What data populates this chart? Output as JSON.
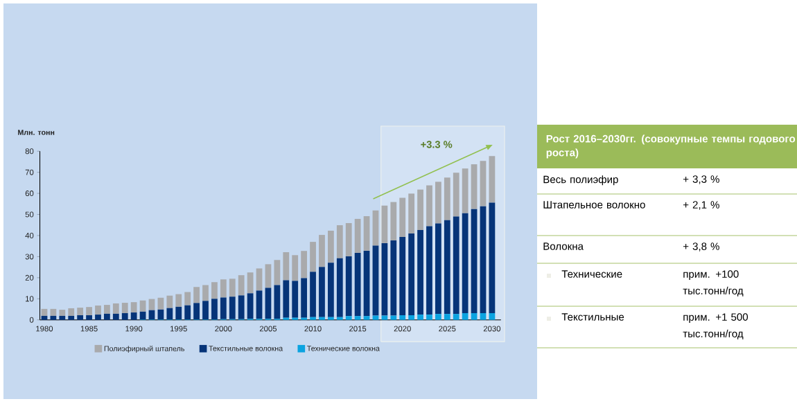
{
  "chart_data": [
    {
      "type": "bar",
      "stacked": true,
      "ylabel": "Млн. тонн",
      "legend": "bottom",
      "x": [
        1980,
        1981,
        1982,
        1983,
        1984,
        1985,
        1986,
        1987,
        1988,
        1989,
        1990,
        1991,
        1992,
        1993,
        1994,
        1995,
        1996,
        1997,
        1998,
        1999,
        2000,
        2001,
        2002,
        2003,
        2004,
        2005,
        2006,
        2007,
        2008,
        2009,
        2010,
        2011,
        2012,
        2013,
        2014,
        2015,
        2016,
        2017,
        2018,
        2019,
        2020,
        2021,
        2022,
        2023,
        2024,
        2025,
        2026,
        2027,
        2028,
        2029,
        2030
      ],
      "series": [
        {
          "name": "Технические волокна",
          "color": "#0ba3e0",
          "values": [
            null,
            null,
            null,
            null,
            null,
            null,
            null,
            null,
            null,
            null,
            null,
            0.2,
            0.2,
            0.2,
            0.2,
            0.2,
            0.2,
            0.2,
            0.2,
            0.2,
            0.3,
            0.3,
            0.3,
            0.5,
            0.5,
            0.5,
            0.5,
            1.0,
            1.0,
            1.0,
            1.3,
            1.3,
            1.3,
            1.3,
            1.8,
            1.8,
            1.8,
            2.0,
            2.0,
            2.0,
            2.2,
            2.2,
            2.5,
            2.5,
            2.8,
            2.8,
            2.8,
            3.2,
            3.2,
            3.2,
            3.2
          ]
        },
        {
          "name": "Текстильные волокна",
          "color": "#063478",
          "values": [
            1.9,
            1.9,
            1.9,
            1.9,
            2.2,
            2.2,
            2.5,
            2.9,
            2.9,
            3.2,
            3.5,
            3.7,
            4.4,
            4.7,
            5.4,
            6.0,
            6.7,
            7.8,
            8.8,
            9.8,
            10.3,
            10.7,
            11.3,
            12.1,
            13.4,
            14.7,
            16.0,
            17.8,
            17.5,
            18.8,
            21.5,
            23.8,
            25.8,
            27.9,
            28.3,
            30.0,
            31.0,
            33.2,
            34.4,
            35.7,
            37.1,
            38.8,
            40.1,
            41.9,
            42.9,
            44.5,
            46.2,
            47.4,
            49.4,
            50.7,
            52.4
          ]
        },
        {
          "name": "Полиэфирный штапель",
          "color": "#a9aaac",
          "values": [
            3.3,
            3.3,
            2.9,
            3.6,
            3.6,
            3.9,
            4.3,
            4.2,
            4.9,
            4.9,
            4.9,
            5.3,
            5.3,
            5.6,
            5.9,
            6.0,
            6.3,
            7.6,
            7.5,
            7.9,
            8.6,
            8.5,
            9.6,
            9.9,
            10.5,
            11.2,
            11.9,
            13.3,
            12.2,
            12.9,
            14.2,
            15.2,
            15.2,
            15.7,
            15.8,
            16.1,
            16.4,
            16.7,
            17.8,
            18.2,
            18.6,
            18.9,
            19.2,
            19.4,
            19.8,
            20.2,
            20.8,
            21.2,
            21.2,
            21.5,
            22.1
          ]
        }
      ],
      "xlim": [
        1979.5,
        2031
      ],
      "ylim": [
        0,
        80
      ],
      "xticks": [
        1980,
        1985,
        1990,
        1995,
        2000,
        2005,
        2010,
        2015,
        2020,
        2025,
        2030
      ],
      "yticks": [
        0,
        10,
        20,
        30,
        40,
        50,
        60,
        70,
        80
      ],
      "bands": [
        {
          "axis": "x",
          "from": 2017.6,
          "to": 2031.4,
          "color": "#eef2ee"
        }
      ],
      "annotations": [
        "+3.3 %"
      ]
    },
    {
      "type": "other",
      "title": "Рост 2016–2030гг. (совокупные темпы годового роста)",
      "annotations": [
        "Весь полиэфир",
        "+ 3,3 %",
        "Штапельное волокно",
        "+ 2,1 %",
        "Волокна",
        "+ 3,8 %",
        "Технические",
        "прим. +100 тыс.тонн/год",
        "Текстильные",
        "прим. +1 500 тыс.тонн/год"
      ]
    }
  ]
}
